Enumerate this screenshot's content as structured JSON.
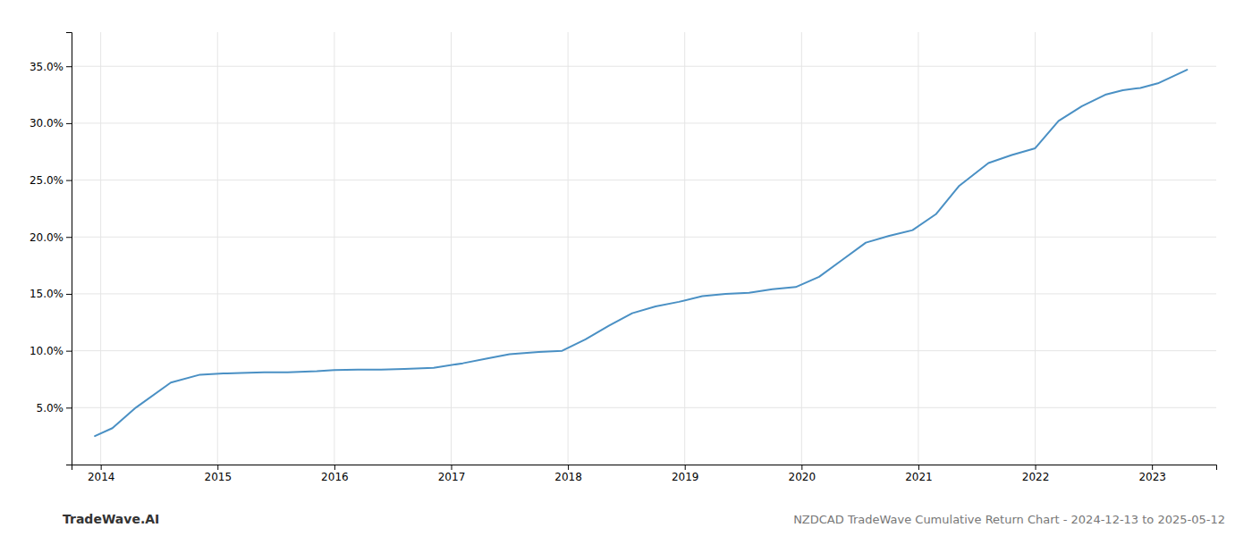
{
  "chart_data": {
    "type": "line",
    "title": "NZDCAD TradeWave Cumulative Return Chart - 2024-12-13 to 2025-05-12",
    "annotations": [
      "TradeWave.AI"
    ],
    "color": "#4a90c4",
    "x": [
      2013.95,
      2014.1,
      2014.3,
      2014.6,
      2014.85,
      2015.05,
      2015.2,
      2015.4,
      2015.6,
      2015.85,
      2016.0,
      2016.2,
      2016.4,
      2016.6,
      2016.85,
      2017.1,
      2017.3,
      2017.5,
      2017.75,
      2017.95,
      2018.15,
      2018.35,
      2018.55,
      2018.75,
      2018.95,
      2019.15,
      2019.35,
      2019.55,
      2019.75,
      2019.95,
      2020.15,
      2020.35,
      2020.55,
      2020.75,
      2020.95,
      2021.15,
      2021.35,
      2021.6,
      2021.8,
      2022.0,
      2022.2,
      2022.4,
      2022.6,
      2022.75,
      2022.9,
      2023.05,
      2023.3
    ],
    "values": [
      2.5,
      3.2,
      5.0,
      7.2,
      7.9,
      8.0,
      8.05,
      8.1,
      8.1,
      8.2,
      8.3,
      8.35,
      8.35,
      8.4,
      8.5,
      8.9,
      9.3,
      9.7,
      9.9,
      10.0,
      11.0,
      12.2,
      13.3,
      13.9,
      14.3,
      14.8,
      15.0,
      15.1,
      15.4,
      15.6,
      16.5,
      18.0,
      19.5,
      20.1,
      20.6,
      22.0,
      24.5,
      26.5,
      27.2,
      27.8,
      30.2,
      31.5,
      32.5,
      32.9,
      33.1,
      33.5,
      34.7
    ],
    "xlim": [
      2013.75,
      2023.55
    ],
    "xticks": [
      2014,
      2015,
      2016,
      2017,
      2018,
      2019,
      2020,
      2021,
      2022,
      2023
    ],
    "ylim": [
      0,
      38
    ],
    "yticks": [
      {
        "value": 5.0,
        "label": "5.0%"
      },
      {
        "value": 10.0,
        "label": "10.0%"
      },
      {
        "value": 15.0,
        "label": "15.0%"
      },
      {
        "value": 20.0,
        "label": "20.0%"
      },
      {
        "value": 25.0,
        "label": "25.0%"
      },
      {
        "value": 30.0,
        "label": "30.0%"
      },
      {
        "value": 35.0,
        "label": "35.0%"
      }
    ],
    "grid": true
  }
}
